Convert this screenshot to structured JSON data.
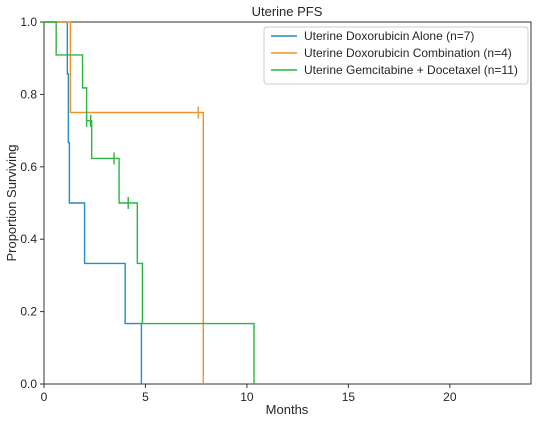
{
  "chart_data": {
    "type": "line",
    "subtype": "kaplan-meier-step",
    "title": "Uterine PFS",
    "xlabel": "Months",
    "ylabel": "Proportion Surviving",
    "xlim": [
      0,
      24
    ],
    "ylim": [
      0,
      1.0
    ],
    "xticks": [
      "0",
      "5",
      "10",
      "15",
      "20"
    ],
    "yticks": [
      "0.0",
      "0.2",
      "0.4",
      "0.6",
      "0.8",
      "1.0"
    ],
    "grid": false,
    "legend_position": "top-right",
    "series": [
      {
        "name": "Uterine Doxorubicin Alone (n=7)",
        "color": "#1f8fc4",
        "steps": [
          [
            0.6,
            1.0
          ],
          [
            1.15,
            0.857
          ],
          [
            1.2,
            0.667
          ],
          [
            1.25,
            0.5
          ],
          [
            2.0,
            0.333
          ],
          [
            4.0,
            0.167
          ],
          [
            4.8,
            0.0
          ]
        ],
        "censored": [],
        "end_x": 4.8
      },
      {
        "name": "Uterine Doxorubicin Combination (n=4)",
        "color": "#f0922b",
        "steps": [
          [
            1.3,
            0.75
          ],
          [
            7.85,
            0.0
          ]
        ],
        "censored": [
          [
            7.6,
            0.75
          ]
        ],
        "end_x": 7.85
      },
      {
        "name": "Uterine Gemcitabine + Docetaxel (n=11)",
        "color": "#2bb540",
        "steps": [
          [
            0.6,
            0.909
          ],
          [
            1.9,
            0.818
          ],
          [
            2.1,
            0.727
          ],
          [
            2.35,
            0.623
          ],
          [
            3.7,
            0.5
          ],
          [
            4.6,
            0.333
          ],
          [
            4.85,
            0.167
          ],
          [
            10.35,
            0.0
          ]
        ],
        "censored": [
          [
            2.1,
            0.727
          ],
          [
            2.3,
            0.727
          ],
          [
            3.45,
            0.623
          ],
          [
            4.15,
            0.5
          ]
        ],
        "end_x": 10.35
      }
    ]
  }
}
